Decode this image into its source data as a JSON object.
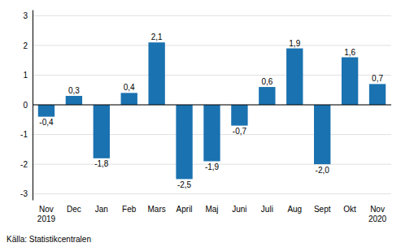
{
  "chart_data": {
    "type": "bar",
    "categories": [
      "Nov\n2019",
      "Dec",
      "Jan",
      "Feb",
      "Mars",
      "April",
      "Maj",
      "Juni",
      "Juli",
      "Aug",
      "Sept",
      "Okt",
      "Nov\n2020"
    ],
    "values": [
      -0.4,
      0.3,
      -1.8,
      0.4,
      2.1,
      -2.5,
      -1.9,
      -0.7,
      0.6,
      1.9,
      -2.0,
      1.6,
      0.7
    ],
    "value_labels": [
      "-0,4",
      "0,3",
      "-1,8",
      "0,4",
      "2,1",
      "-2,5",
      "-1,9",
      "-0,7",
      "0,6",
      "1,9",
      "-2,0",
      "1,6",
      "0,7"
    ],
    "data_labels": true,
    "color": "#1a72b0",
    "ylim": [
      -3.2,
      3.2
    ],
    "yticks": [
      -3,
      -2,
      -1,
      0,
      1,
      2,
      3
    ],
    "grid": true,
    "source": "Källa: Statistikcentralen"
  }
}
